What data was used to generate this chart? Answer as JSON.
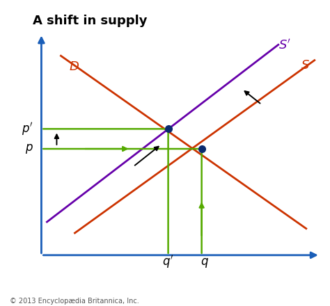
{
  "title": "A shift in supply",
  "title_fontsize": 13,
  "title_fontweight": "bold",
  "copyright": "© 2013 Encyclopædia Britannica, Inc.",
  "axis_color": "#1a5eb8",
  "curve_color_demand": "#cc3300",
  "curve_color_supply_orig": "#cc3300",
  "curve_color_supply_new": "#6600aa",
  "green_color": "#55aa00",
  "dot_color": "#0a2a6e",
  "xlim": [
    0,
    10
  ],
  "ylim": [
    0,
    10
  ],
  "figsize": [
    4.74,
    4.4
  ],
  "dpi": 100,
  "intersect1_x": 4.55,
  "intersect1_y": 5.7,
  "intersect2_x": 5.75,
  "intersect2_y": 4.8
}
